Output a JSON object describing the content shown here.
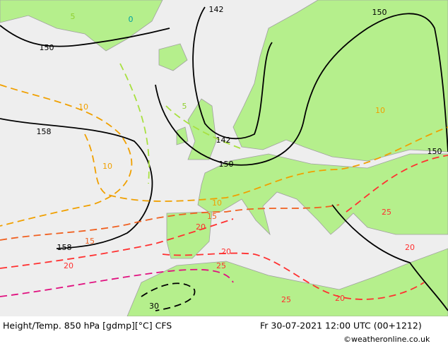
{
  "footer": {
    "title": "Height/Temp. 850 hPa [gdmp][°C] CFS",
    "datetime": "Fr 30-07-2021 12:00 UTC (00+1212)",
    "credit": "©weatheronline.co.uk"
  },
  "contour_labels": [
    142,
    150,
    150,
    158,
    5,
    0,
    10,
    10,
    5,
    142,
    150,
    10,
    150,
    10,
    15,
    15,
    20,
    20,
    25,
    20,
    25,
    20,
    25,
    20,
    30,
    158
  ]
}
